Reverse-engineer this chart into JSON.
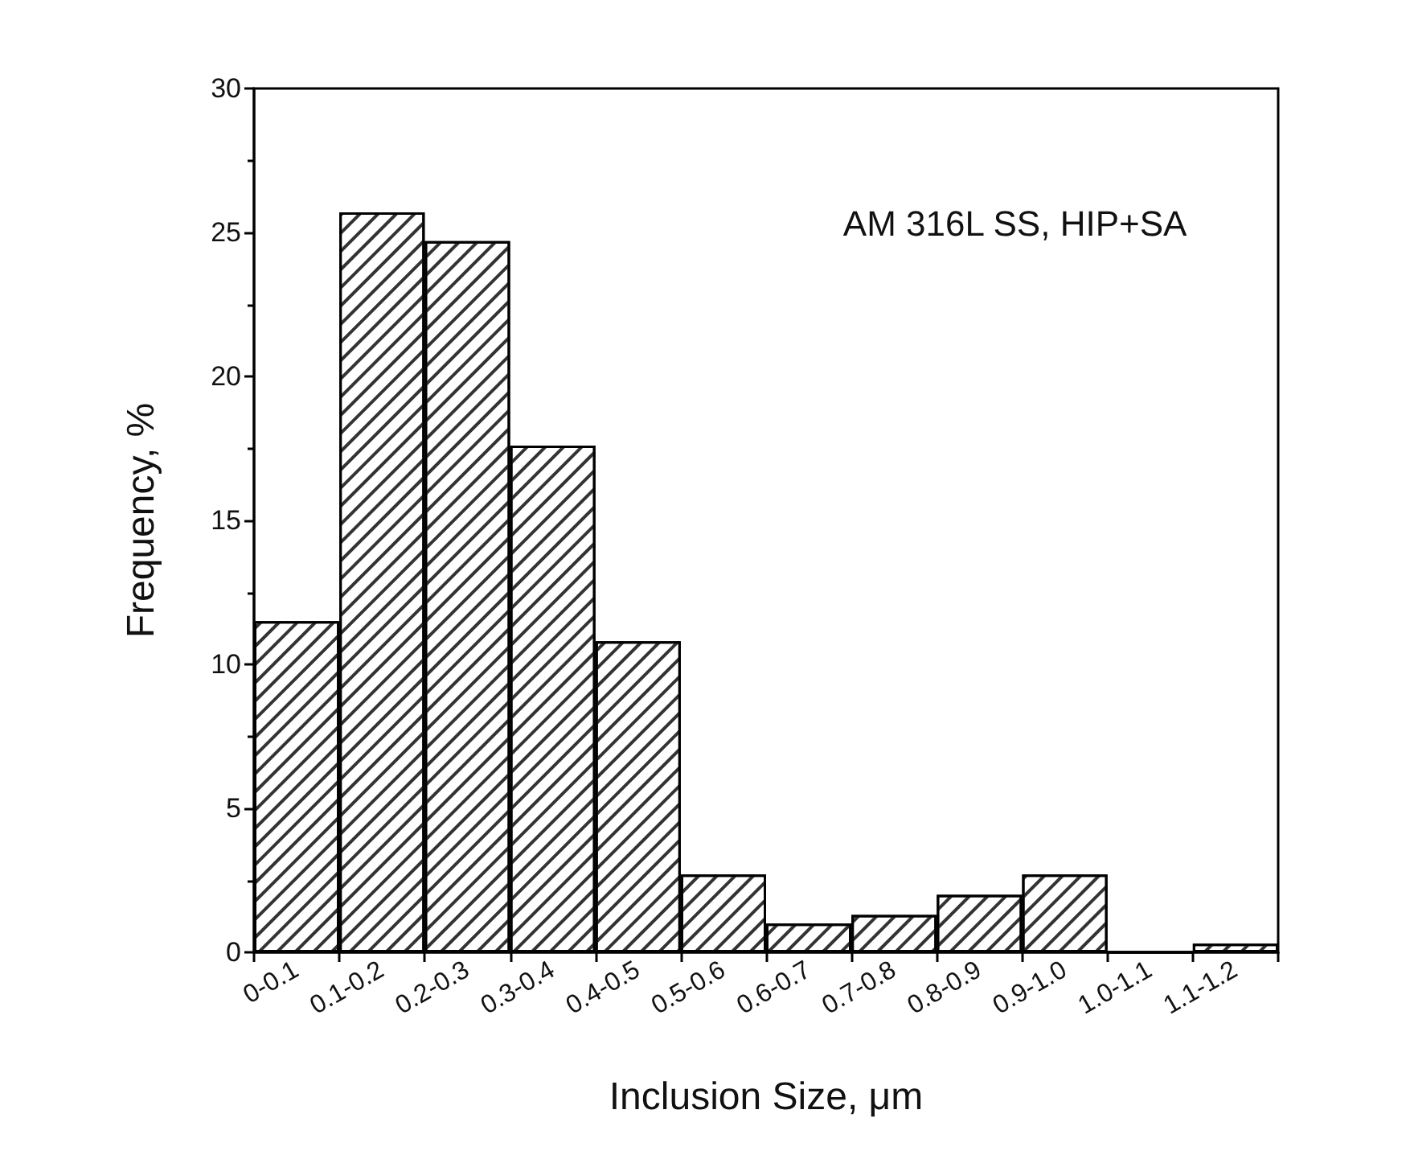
{
  "chart_data": {
    "type": "bar",
    "xlabel": "Inclusion Size, μm",
    "ylabel": "Frequency, %",
    "categories": [
      "0-0.1",
      "0.1-0.2",
      "0.2-0.3",
      "0.3-0.4",
      "0.4-0.5",
      "0.5-0.6",
      "0.6-0.7",
      "0.7-0.8",
      "0.8-0.9",
      "0.9-1.0",
      "1.0-1.1",
      "1.1-1.2"
    ],
    "values": [
      11.5,
      25.7,
      24.7,
      17.6,
      10.8,
      2.7,
      1.0,
      1.3,
      2.0,
      2.7,
      0,
      0.3
    ],
    "color": "#ffffff",
    "ylim": [
      0,
      30
    ],
    "yticks": [
      0,
      5,
      10,
      15,
      20,
      25,
      30
    ],
    "annotations": [
      "AM 316L SS, HIP+SA"
    ]
  }
}
